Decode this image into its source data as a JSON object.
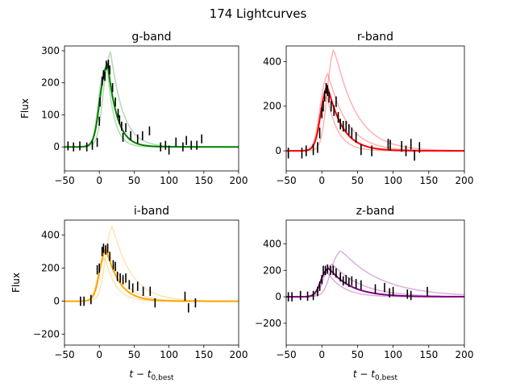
{
  "title": "174 Lightcurves",
  "chart_data": [
    {
      "type": "line",
      "title": "g-band",
      "ylabel": "Flux",
      "xlabel": "",
      "xlim": [
        -50,
        200
      ],
      "ylim": [
        -75,
        315
      ],
      "xticks": [
        -50,
        0,
        50,
        100,
        150,
        200
      ],
      "yticks": [
        0,
        100,
        200,
        300
      ],
      "color": "#008000",
      "best_fit": {
        "t0": 0,
        "peak_time": 12,
        "amplitude": 258,
        "rise": 4.0,
        "fall": 13
      },
      "alt_fits": [
        {
          "t0": 5,
          "peak_time": 16,
          "amplitude": 295,
          "rise": 4.0,
          "fall": 17
        },
        {
          "t0": -2,
          "peak_time": 11,
          "amplitude": 255,
          "rise": 3.5,
          "fall": 10
        }
      ],
      "points": [
        {
          "x": -45,
          "y": 3,
          "err": 14
        },
        {
          "x": -37,
          "y": 0,
          "err": 14
        },
        {
          "x": -28,
          "y": 3,
          "err": 14
        },
        {
          "x": -18,
          "y": 0,
          "err": 14
        },
        {
          "x": -10,
          "y": 5,
          "err": 14
        },
        {
          "x": -3,
          "y": 14,
          "err": 14
        },
        {
          "x": 0,
          "y": 80,
          "err": 14
        },
        {
          "x": 1,
          "y": 140,
          "err": 14
        },
        {
          "x": 4,
          "y": 205,
          "err": 14
        },
        {
          "x": 6,
          "y": 225,
          "err": 14
        },
        {
          "x": 8,
          "y": 220,
          "err": 14
        },
        {
          "x": 10,
          "y": 255,
          "err": 14
        },
        {
          "x": 13,
          "y": 258,
          "err": 14
        },
        {
          "x": 15,
          "y": 240,
          "err": 14
        },
        {
          "x": 19,
          "y": 185,
          "err": 14
        },
        {
          "x": 23,
          "y": 140,
          "err": 14
        },
        {
          "x": 27,
          "y": 105,
          "err": 14
        },
        {
          "x": 29,
          "y": 85,
          "err": 14
        },
        {
          "x": 32,
          "y": 65,
          "err": 14
        },
        {
          "x": 34,
          "y": 30,
          "err": 14
        },
        {
          "x": 38,
          "y": 60,
          "err": 14
        },
        {
          "x": 45,
          "y": 35,
          "err": 14
        },
        {
          "x": 55,
          "y": 25,
          "err": 14
        },
        {
          "x": 62,
          "y": 35,
          "err": 14
        },
        {
          "x": 72,
          "y": 50,
          "err": 14
        },
        {
          "x": 88,
          "y": 0,
          "err": 14
        },
        {
          "x": 95,
          "y": 5,
          "err": 14
        },
        {
          "x": 100,
          "y": -10,
          "err": 14
        },
        {
          "x": 110,
          "y": 15,
          "err": 14
        },
        {
          "x": 120,
          "y": 0,
          "err": 14
        },
        {
          "x": 125,
          "y": 20,
          "err": 14
        },
        {
          "x": 132,
          "y": 5,
          "err": 14
        },
        {
          "x": 140,
          "y": 5,
          "err": 14
        },
        {
          "x": 147,
          "y": 25,
          "err": 14
        }
      ]
    },
    {
      "type": "line",
      "title": "r-band",
      "ylabel": "",
      "xlabel": "",
      "xlim": [
        -50,
        200
      ],
      "ylim": [
        -90,
        470
      ],
      "xticks": [
        -50,
        0,
        50,
        100,
        150,
        200
      ],
      "yticks": [
        0,
        200,
        400
      ],
      "color": "#ff0000",
      "best_fit": {
        "t0": -2,
        "peak_time": 7,
        "amplitude": 290,
        "rise": 4.0,
        "fall": 20
      },
      "alt_fits": [
        {
          "t0": 7,
          "peak_time": 16,
          "amplitude": 450,
          "rise": 4.0,
          "fall": 30
        },
        {
          "t0": -3,
          "peak_time": 8,
          "amplitude": 345,
          "rise": 4.0,
          "fall": 26
        },
        {
          "t0": -4,
          "peak_time": 7,
          "amplitude": 245,
          "rise": 3.5,
          "fall": 15
        }
      ],
      "points": [
        {
          "x": -47,
          "y": -10,
          "err": 24
        },
        {
          "x": -28,
          "y": -10,
          "err": 24
        },
        {
          "x": -22,
          "y": 0,
          "err": 24
        },
        {
          "x": -12,
          "y": 5,
          "err": 24
        },
        {
          "x": -6,
          "y": 15,
          "err": 24
        },
        {
          "x": -3,
          "y": 80,
          "err": 24
        },
        {
          "x": 0,
          "y": 170,
          "err": 24
        },
        {
          "x": 2,
          "y": 200,
          "err": 24
        },
        {
          "x": 4,
          "y": 245,
          "err": 24
        },
        {
          "x": 6,
          "y": 280,
          "err": 24
        },
        {
          "x": 8,
          "y": 270,
          "err": 24
        },
        {
          "x": 10,
          "y": 240,
          "err": 24
        },
        {
          "x": 13,
          "y": 200,
          "err": 24
        },
        {
          "x": 17,
          "y": 180,
          "err": 24
        },
        {
          "x": 20,
          "y": 220,
          "err": 24
        },
        {
          "x": 23,
          "y": 150,
          "err": 24
        },
        {
          "x": 26,
          "y": 120,
          "err": 24
        },
        {
          "x": 30,
          "y": 110,
          "err": 24
        },
        {
          "x": 34,
          "y": 110,
          "err": 24
        },
        {
          "x": 38,
          "y": 95,
          "err": 24
        },
        {
          "x": 42,
          "y": 80,
          "err": 24
        },
        {
          "x": 48,
          "y": 60,
          "err": 24
        },
        {
          "x": 55,
          "y": 5,
          "err": 24
        },
        {
          "x": 70,
          "y": 0,
          "err": 24
        },
        {
          "x": 93,
          "y": 30,
          "err": 24
        },
        {
          "x": 96,
          "y": 25,
          "err": 24
        },
        {
          "x": 112,
          "y": 20,
          "err": 24
        },
        {
          "x": 118,
          "y": 0,
          "err": 24
        },
        {
          "x": 125,
          "y": 30,
          "err": 24
        },
        {
          "x": 130,
          "y": -20,
          "err": 24
        },
        {
          "x": 137,
          "y": 15,
          "err": 24
        }
      ]
    },
    {
      "type": "line",
      "title": "i-band",
      "ylabel": "Flux",
      "xlabel": "t − t0,best",
      "xlim": [
        -50,
        200
      ],
      "ylim": [
        -265,
        490
      ],
      "xticks": [
        -50,
        0,
        50,
        100,
        150,
        200
      ],
      "yticks": [
        -200,
        0,
        200,
        400
      ],
      "color": "#ffa500",
      "best_fit": {
        "t0": 0,
        "peak_time": 9,
        "amplitude": 315,
        "rise": 4.0,
        "fall": 18
      },
      "alt_fits": [
        {
          "t0": 8,
          "peak_time": 18,
          "amplitude": 450,
          "rise": 4.0,
          "fall": 26
        },
        {
          "t0": 1,
          "peak_time": 10,
          "amplitude": 330,
          "rise": 4.0,
          "fall": 22
        },
        {
          "t0": -3,
          "peak_time": 8,
          "amplitude": 260,
          "rise": 3.5,
          "fall": 15
        }
      ],
      "points": [
        {
          "x": -27,
          "y": 0,
          "err": 28
        },
        {
          "x": -22,
          "y": 0,
          "err": 28
        },
        {
          "x": -12,
          "y": 10,
          "err": 28
        },
        {
          "x": -3,
          "y": 190,
          "err": 28
        },
        {
          "x": 0,
          "y": 200,
          "err": 28
        },
        {
          "x": 4,
          "y": 300,
          "err": 28
        },
        {
          "x": 6,
          "y": 320,
          "err": 28
        },
        {
          "x": 9,
          "y": 310,
          "err": 28
        },
        {
          "x": 12,
          "y": 320,
          "err": 28
        },
        {
          "x": 15,
          "y": 270,
          "err": 28
        },
        {
          "x": 20,
          "y": 220,
          "err": 28
        },
        {
          "x": 23,
          "y": 210,
          "err": 28
        },
        {
          "x": 26,
          "y": 150,
          "err": 28
        },
        {
          "x": 30,
          "y": 140,
          "err": 28
        },
        {
          "x": 34,
          "y": 130,
          "err": 28
        },
        {
          "x": 38,
          "y": 140,
          "err": 28
        },
        {
          "x": 43,
          "y": 100,
          "err": 28
        },
        {
          "x": 48,
          "y": 80,
          "err": 28
        },
        {
          "x": 55,
          "y": 90,
          "err": 28
        },
        {
          "x": 63,
          "y": 60,
          "err": 28
        },
        {
          "x": 73,
          "y": 60,
          "err": 28
        },
        {
          "x": 80,
          "y": -10,
          "err": 28
        },
        {
          "x": 123,
          "y": 30,
          "err": 28
        },
        {
          "x": 128,
          "y": -40,
          "err": 28
        },
        {
          "x": 138,
          "y": -10,
          "err": 28
        }
      ]
    },
    {
      "type": "line",
      "title": "z-band",
      "ylabel": "",
      "xlabel": "t − t0,best",
      "xlim": [
        -50,
        200
      ],
      "ylim": [
        -365,
        580
      ],
      "xticks": [
        -50,
        0,
        50,
        100,
        150,
        200
      ],
      "yticks": [
        -200,
        0,
        200,
        400
      ],
      "color": "#800080",
      "best_fit": {
        "t0": -2,
        "peak_time": 9,
        "amplitude": 215,
        "rise": 4.0,
        "fall": 30
      },
      "alt_fits": [
        {
          "t0": 12,
          "peak_time": 26,
          "amplitude": 345,
          "rise": 5.0,
          "fall": 55
        },
        {
          "t0": 2,
          "peak_time": 14,
          "amplitude": 245,
          "rise": 4.0,
          "fall": 40
        },
        {
          "t0": -4,
          "peak_time": 8,
          "amplitude": 180,
          "rise": 3.5,
          "fall": 22
        }
      ],
      "points": [
        {
          "x": -47,
          "y": 0,
          "err": 35
        },
        {
          "x": -42,
          "y": 0,
          "err": 35
        },
        {
          "x": -30,
          "y": 10,
          "err": 35
        },
        {
          "x": -20,
          "y": 5,
          "err": 35
        },
        {
          "x": -12,
          "y": 10,
          "err": 35
        },
        {
          "x": -6,
          "y": 40,
          "err": 35
        },
        {
          "x": -3,
          "y": 80,
          "err": 35
        },
        {
          "x": 0,
          "y": 130,
          "err": 35
        },
        {
          "x": 2,
          "y": 200,
          "err": 35
        },
        {
          "x": 5,
          "y": 200,
          "err": 35
        },
        {
          "x": 8,
          "y": 210,
          "err": 35
        },
        {
          "x": 12,
          "y": 200,
          "err": 35
        },
        {
          "x": 16,
          "y": 200,
          "err": 35
        },
        {
          "x": 20,
          "y": 180,
          "err": 35
        },
        {
          "x": 26,
          "y": 150,
          "err": 35
        },
        {
          "x": 30,
          "y": 120,
          "err": 35
        },
        {
          "x": 34,
          "y": 130,
          "err": 35
        },
        {
          "x": 38,
          "y": 110,
          "err": 35
        },
        {
          "x": 42,
          "y": 120,
          "err": 35
        },
        {
          "x": 48,
          "y": 100,
          "err": 35
        },
        {
          "x": 55,
          "y": 90,
          "err": 35
        },
        {
          "x": 75,
          "y": 60,
          "err": 35
        },
        {
          "x": 88,
          "y": 70,
          "err": 35
        },
        {
          "x": 95,
          "y": 30,
          "err": 35
        },
        {
          "x": 100,
          "y": 40,
          "err": 35
        },
        {
          "x": 120,
          "y": 20,
          "err": 35
        },
        {
          "x": 125,
          "y": 10,
          "err": 35
        },
        {
          "x": 148,
          "y": 40,
          "err": 35
        }
      ]
    }
  ]
}
